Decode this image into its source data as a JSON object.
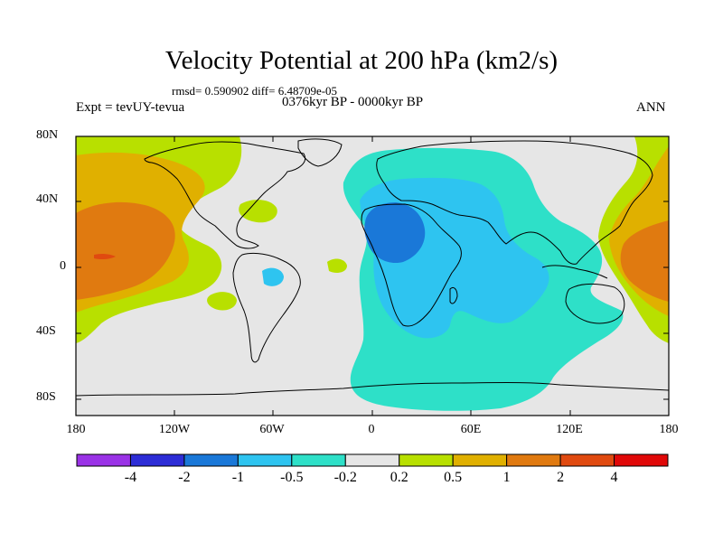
{
  "title": "Velocity Potential at 200 hPa (km2/s)",
  "stats_line": "rmsd= 0.590902 diff= 6.48709e-05",
  "experiment": "Expt = tevUY-tevua",
  "period": "0376kyr BP - 0000kyr BP",
  "season": "ANN",
  "lat_labels": [
    "80N",
    "40N",
    "0",
    "40S",
    "80S"
  ],
  "lon_labels": [
    "180",
    "120W",
    "60W",
    "0",
    "60E",
    "120E",
    "180"
  ],
  "colorbar": {
    "colors": [
      "#9a32e6",
      "#2d2dd6",
      "#1a78d8",
      "#2ec4f0",
      "#2ee0c8",
      "#e6e6e6",
      "#b8e000",
      "#e0b000",
      "#e07a10",
      "#e04a10",
      "#e00808"
    ],
    "labels": [
      "-4",
      "-2",
      "-1",
      "-0.5",
      "-0.2",
      "0.2",
      "0.5",
      "1",
      "2",
      "4"
    ]
  },
  "map_colors": {
    "neutral": "#e6e6e6",
    "lt_pos": "#b8e000",
    "mid_pos": "#e0b000",
    "pos": "#e07a10",
    "strong_pos": "#e04a10",
    "lt_neg": "#2ee0c8",
    "mid_neg": "#2ec4f0",
    "neg": "#1a78d8"
  }
}
